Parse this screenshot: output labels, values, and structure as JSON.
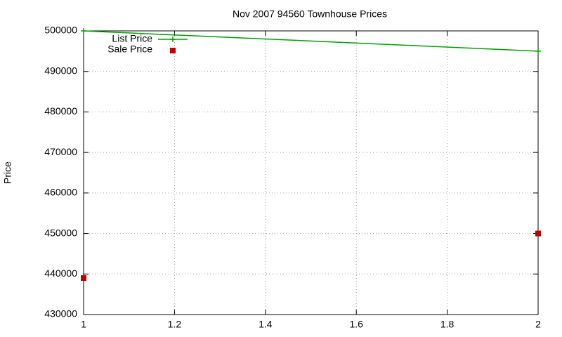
{
  "chart_data": {
    "type": "line",
    "title": "Nov 2007 94560 Townhouse Prices",
    "ylabel": "Price",
    "xlim": [
      1,
      2
    ],
    "xticks": [
      1,
      1.2,
      1.4,
      1.6,
      1.8,
      2
    ],
    "ylim": [
      430000,
      500000
    ],
    "yticks": [
      430000,
      440000,
      450000,
      460000,
      470000,
      480000,
      490000,
      500000
    ],
    "grid": true,
    "legend": "top-left",
    "series": [
      {
        "name": "List Price",
        "color": "#00a000",
        "style": "linespoints",
        "x": [
          1,
          2
        ],
        "values": [
          500000,
          495000
        ]
      },
      {
        "name": "Sale Price",
        "color": "#c00000",
        "style": "points",
        "x": [
          1,
          2
        ],
        "values": [
          439000,
          450000
        ]
      }
    ]
  }
}
